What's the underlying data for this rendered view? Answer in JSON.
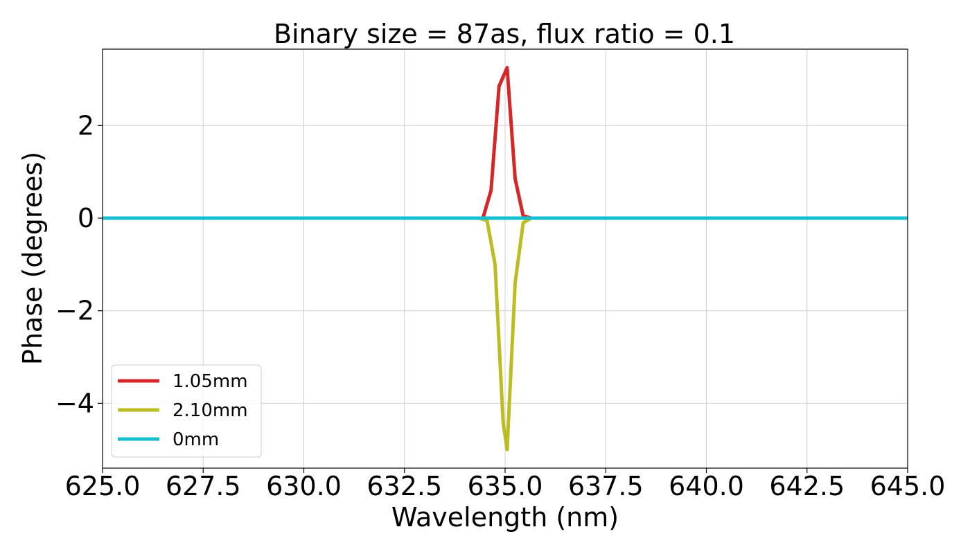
{
  "chart_data": {
    "type": "line",
    "title": "Binary size = 87as, flux ratio = 0.1",
    "xlabel": "Wavelength (nm)",
    "ylabel": "Phase (degrees)",
    "xlim": [
      625.0,
      645.0
    ],
    "ylim": [
      -5.4,
      3.65
    ],
    "xticks": [
      625.0,
      627.5,
      630.0,
      632.5,
      635.0,
      637.5,
      640.0,
      642.5,
      645.0
    ],
    "xtick_labels": [
      "625.0",
      "627.5",
      "630.0",
      "632.5",
      "635.0",
      "637.5",
      "640.0",
      "642.5",
      "645.0"
    ],
    "yticks": [
      -4,
      -2,
      0,
      2
    ],
    "ytick_labels": [
      "−4",
      "−2",
      "0",
      "2"
    ],
    "grid": true,
    "legend_position": "bottom-left",
    "series": [
      {
        "name": "1.05mm",
        "color": "#d62728",
        "x": [
          625.0,
          634.45,
          634.65,
          634.85,
          635.05,
          635.25,
          635.45,
          635.65,
          645.0
        ],
        "y": [
          0,
          0,
          0.6,
          2.85,
          3.25,
          0.85,
          0.05,
          0,
          0
        ]
      },
      {
        "name": "2.10mm",
        "color": "#bcbd22",
        "x": [
          625.0,
          634.35,
          634.55,
          634.75,
          634.95,
          635.05,
          635.25,
          635.45,
          635.65,
          645.0
        ],
        "y": [
          0,
          0,
          -0.05,
          -1.0,
          -4.4,
          -5.0,
          -1.4,
          -0.1,
          0,
          0
        ]
      },
      {
        "name": "0mm",
        "color": "#17becf",
        "x": [
          625.0,
          645.0
        ],
        "y": [
          0,
          0
        ]
      }
    ]
  }
}
